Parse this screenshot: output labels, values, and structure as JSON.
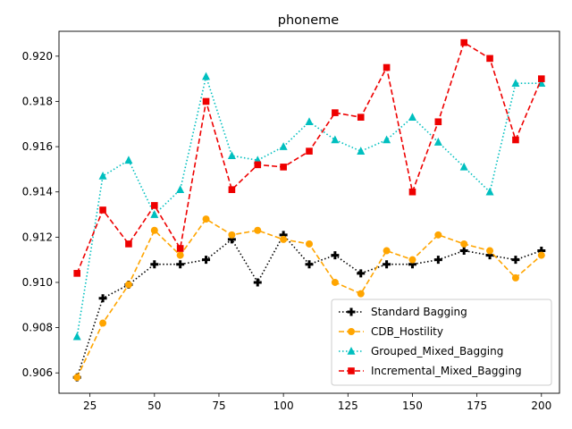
{
  "chart_data": {
    "type": "line",
    "title": "phoneme",
    "xlabel": "",
    "ylabel": "",
    "xlim": [
      13,
      207
    ],
    "ylim": [
      0.9051,
      0.9211
    ],
    "xticks": [
      25,
      50,
      75,
      100,
      125,
      150,
      175,
      200
    ],
    "xtick_labels": [
      "25",
      "50",
      "75",
      "100",
      "125",
      "150",
      "175",
      "200"
    ],
    "yticks": [
      0.906,
      0.908,
      0.91,
      0.912,
      0.914,
      0.916,
      0.918,
      0.92
    ],
    "ytick_labels": [
      "0.906",
      "0.908",
      "0.910",
      "0.912",
      "0.914",
      "0.916",
      "0.918",
      "0.920"
    ],
    "grid": false,
    "legend_position": "lower-right",
    "x": [
      20,
      30,
      40,
      50,
      60,
      70,
      80,
      90,
      100,
      110,
      120,
      130,
      140,
      150,
      160,
      170,
      180,
      190,
      200
    ],
    "series": [
      {
        "name": "Standard Bagging",
        "color": "#000000",
        "linestyle": "dotted",
        "marker": "plus",
        "values": [
          0.9058,
          0.9093,
          0.9099,
          0.9108,
          0.9108,
          0.911,
          0.9119,
          0.91,
          0.9121,
          0.9108,
          0.9112,
          0.9104,
          0.9108,
          0.9108,
          0.911,
          0.9114,
          0.9112,
          0.911,
          0.9114
        ]
      },
      {
        "name": "CDB_Hostility",
        "color": "#ffa500",
        "linestyle": "dashed",
        "marker": "circle",
        "values": [
          0.9058,
          0.9082,
          0.9099,
          0.9123,
          0.9112,
          0.9128,
          0.9121,
          0.9123,
          0.9119,
          0.9117,
          0.91,
          0.9095,
          0.9114,
          0.911,
          0.9121,
          0.9117,
          0.9114,
          0.9102,
          0.9112
        ]
      },
      {
        "name": "Grouped_Mixed_Bagging",
        "color": "#00bfbf",
        "linestyle": "dotted",
        "marker": "triangle",
        "values": [
          0.9076,
          0.9147,
          0.9154,
          0.913,
          0.9141,
          0.9191,
          0.9156,
          0.9154,
          0.916,
          0.9171,
          0.9163,
          0.9158,
          0.9163,
          0.9173,
          0.9162,
          0.9151,
          0.914,
          0.9188,
          0.9188
        ]
      },
      {
        "name": "Incremental_Mixed_Bagging",
        "color": "#ee0000",
        "linestyle": "dashed",
        "marker": "square",
        "values": [
          0.9104,
          0.9132,
          0.9117,
          0.9134,
          0.9115,
          0.918,
          0.9141,
          0.9152,
          0.9151,
          0.9158,
          0.9175,
          0.9173,
          0.9195,
          0.914,
          0.9171,
          0.9206,
          0.9199,
          0.9163,
          0.919
        ]
      }
    ]
  }
}
